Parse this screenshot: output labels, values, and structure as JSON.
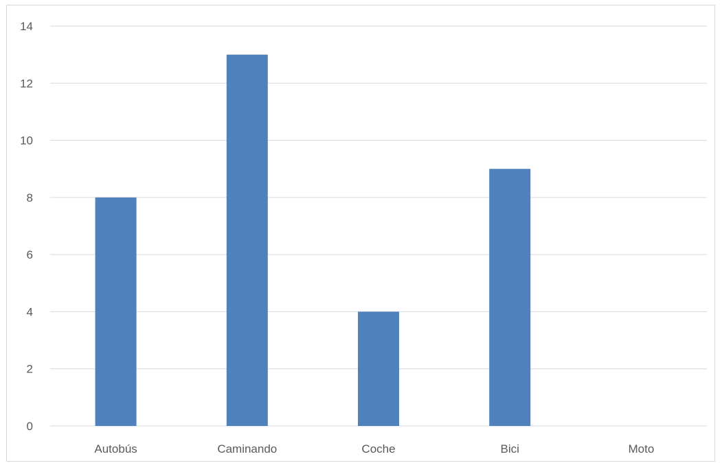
{
  "chart_data": {
    "type": "bar",
    "title": "",
    "xlabel": "",
    "ylabel": "",
    "categories": [
      "Autobús",
      "Caminando",
      "Coche",
      "Bici",
      "Moto"
    ],
    "values": [
      8,
      13,
      4,
      9,
      0
    ],
    "ylim": [
      0,
      14
    ],
    "yticks": [
      "0",
      "2",
      "4",
      "6",
      "8",
      "10",
      "12",
      "14"
    ],
    "grid": true,
    "legend": "none",
    "bar_color": "#4f81bd",
    "grid_color": "#d9d9d9",
    "label_color": "#595959"
  }
}
